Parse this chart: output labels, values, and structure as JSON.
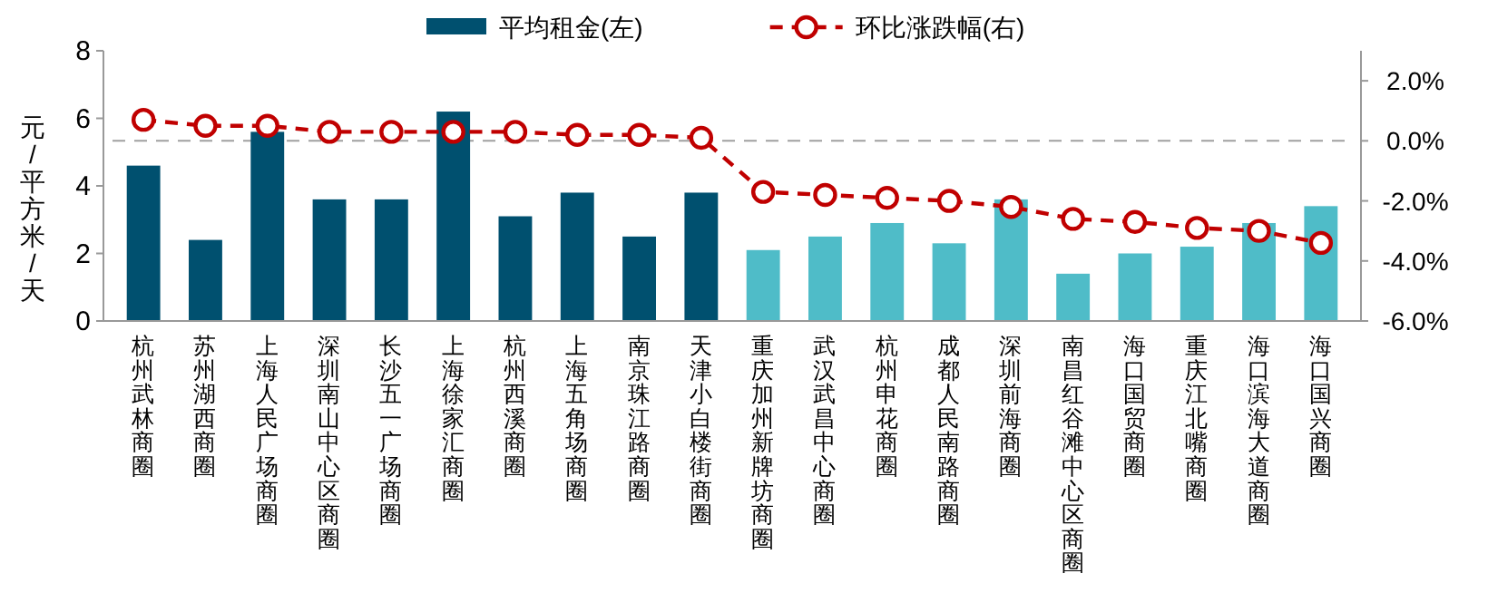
{
  "chart_data": {
    "type": "bar",
    "categories": [
      "杭州武林商圈",
      "苏州湖西商圈",
      "上海人民广场商圈",
      "深圳南山中心区商圈",
      "长沙五一广场商圈",
      "上海徐家汇商圈",
      "杭州西溪商圈",
      "上海五角场商圈",
      "南京珠江路商圈",
      "天津小白楼街商圈",
      "重庆加州新牌坊商圈",
      "武汉武昌中心商圈",
      "杭州申花商圈",
      "成都人民南路商圈",
      "深圳前海商圈",
      "南昌红谷滩中心区商圈",
      "海口国贸商圈",
      "重庆江北嘴商圈",
      "海口滨海大道商圈",
      "海口国兴商圈"
    ],
    "series": [
      {
        "name": "平均租金(左)",
        "color": "#00506f",
        "colors": [
          "#00506f",
          "#00506f",
          "#00506f",
          "#00506f",
          "#00506f",
          "#00506f",
          "#00506f",
          "#00506f",
          "#00506f",
          "#00506f",
          "#4fbcc8",
          "#4fbcc8",
          "#4fbcc8",
          "#4fbcc8",
          "#4fbcc8",
          "#4fbcc8",
          "#4fbcc8",
          "#4fbcc8",
          "#4fbcc8",
          "#4fbcc8"
        ],
        "values": [
          4.6,
          2.4,
          5.6,
          3.6,
          3.6,
          6.2,
          3.1,
          3.8,
          2.5,
          3.8,
          2.1,
          2.5,
          2.9,
          2.3,
          3.6,
          1.4,
          2.0,
          2.2,
          2.9,
          3.4
        ]
      },
      {
        "name": "环比涨跌幅(右)",
        "type": "line",
        "axis": "y2",
        "color": "#c00000",
        "marker": "circle",
        "line_style": "dashed",
        "values": [
          0.7,
          0.5,
          0.5,
          0.3,
          0.3,
          0.3,
          0.3,
          0.2,
          0.2,
          0.1,
          -1.7,
          -1.8,
          -1.9,
          -2.0,
          -2.2,
          -2.6,
          -2.7,
          -2.9,
          -3.0,
          -3.4
        ]
      }
    ],
    "ylabel": "元/平方米/天",
    "ylim": [
      0,
      8
    ],
    "yticks": [
      0,
      2,
      4,
      6,
      8
    ],
    "y2lim": [
      -6,
      3
    ],
    "y2ticks": [
      {
        "value": -6,
        "label": "-6.0%"
      },
      {
        "value": -4,
        "label": "-4.0%"
      },
      {
        "value": -2,
        "label": "-2.0%"
      },
      {
        "value": 0,
        "label": "0.0%"
      },
      {
        "value": 2,
        "label": "2.0%"
      }
    ],
    "ref_lines": [
      {
        "axis": "y2",
        "value": 0,
        "color": "#a0a0a0",
        "line_style": "dashed"
      }
    ],
    "legend": "top",
    "grid": false
  }
}
